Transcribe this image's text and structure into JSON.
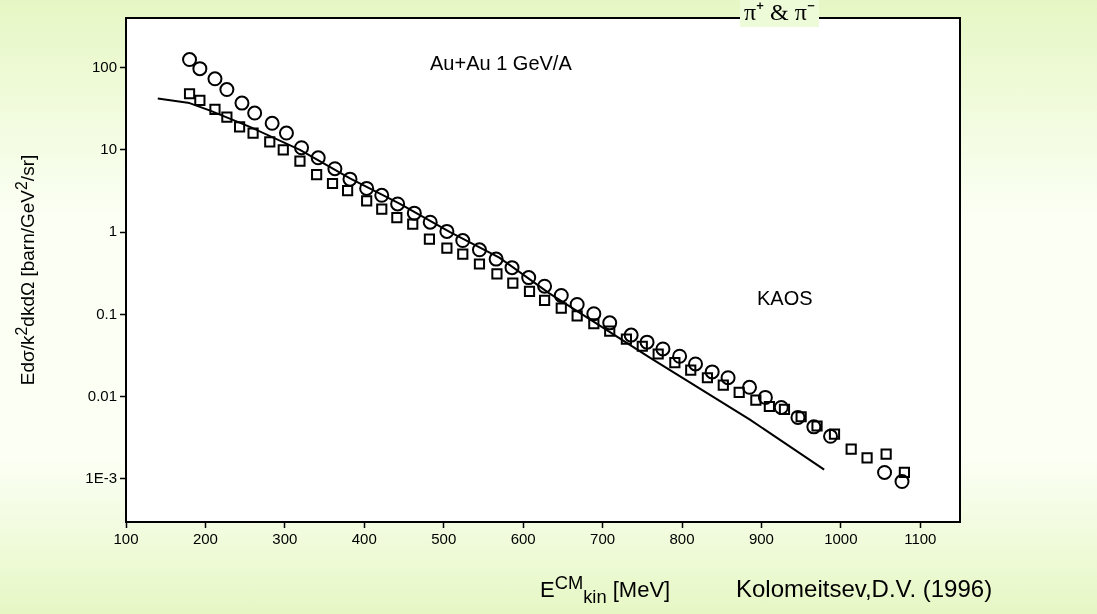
{
  "chart_data": {
    "type": "scatter",
    "xlabel": "E$^{CM}$$_{kin}$ [MeV]",
    "ylabel": "Edσ/k$^{2}$dkdΩ [barn/GeV$^{2}$/sr]",
    "annotations": [
      "π⁺ & π⁻",
      "Au+Au 1 GeV/A",
      "KAOS",
      "Kolomeitsev,D.V. (1996)"
    ],
    "log": "y",
    "grid": false,
    "legend": false,
    "xlim": [
      100,
      1150
    ],
    "xticks": [
      100,
      200,
      300,
      400,
      500,
      600,
      700,
      800,
      900,
      1000,
      1100
    ],
    "ylim": [
      0.0003,
      400
    ],
    "yticks": [
      {
        "value": 0.001,
        "label": "1E-3"
      },
      0.01,
      0.1,
      1,
      10,
      100
    ],
    "series": [
      {
        "type": "scatter",
        "marker": "circle",
        "color": "#000000",
        "x": [
          180,
          193,
          212,
          227,
          246,
          262,
          284,
          302,
          321,
          342,
          363,
          382,
          403,
          422,
          442,
          463,
          483,
          504,
          524,
          545,
          566,
          586,
          607,
          627,
          648,
          668,
          689,
          709,
          736,
          756,
          776,
          797,
          817,
          838,
          858,
          885,
          905,
          925,
          946,
          966,
          987,
          1055,
          1077
        ],
        "values": [
          125,
          97,
          73,
          54,
          37,
          28,
          21,
          16,
          10.6,
          8,
          5.9,
          4.4,
          3.4,
          2.8,
          2.2,
          1.7,
          1.32,
          1.02,
          0.79,
          0.61,
          0.47,
          0.37,
          0.28,
          0.22,
          0.17,
          0.132,
          0.102,
          0.079,
          0.056,
          0.046,
          0.038,
          0.031,
          0.025,
          0.02,
          0.017,
          0.013,
          0.0098,
          0.0074,
          0.0056,
          0.0043,
          0.0033,
          0.0012,
          0.00093
        ]
      },
      {
        "type": "scatter",
        "marker": "square",
        "color": "#000000",
        "x": [
          180,
          193,
          212,
          227,
          243,
          260,
          281,
          298,
          319,
          340,
          360,
          379,
          403,
          422,
          441,
          461,
          482,
          504,
          524,
          545,
          567,
          587,
          608,
          627,
          648,
          668,
          689,
          709,
          730,
          750,
          770,
          791,
          811,
          832,
          852,
          872,
          893,
          910,
          929,
          950,
          970,
          992,
          1013,
          1033,
          1057,
          1080
        ],
        "values": [
          48,
          40,
          31,
          25,
          19,
          16,
          12.5,
          10,
          7.3,
          5,
          3.9,
          3.2,
          2.4,
          1.9,
          1.5,
          1.25,
          0.82,
          0.64,
          0.54,
          0.41,
          0.31,
          0.24,
          0.19,
          0.148,
          0.119,
          0.096,
          0.077,
          0.0625,
          0.05,
          0.041,
          0.033,
          0.026,
          0.021,
          0.017,
          0.0138,
          0.0113,
          0.0091,
          0.0076,
          0.007,
          0.0057,
          0.0044,
          0.0035,
          0.0023,
          0.0018,
          0.002,
          0.0012
        ]
      },
      {
        "type": "line",
        "marker": "none",
        "line_style": "solid",
        "color": "#000000",
        "x": [
          140,
          180,
          206,
          256,
          319,
          382,
          445,
          508,
          570,
          633,
          759,
          885,
          979
        ],
        "values": [
          42,
          37,
          30,
          19,
          10,
          4.5,
          2.2,
          1.0,
          0.49,
          0.18,
          0.03,
          0.0053,
          0.0013
        ]
      }
    ]
  }
}
